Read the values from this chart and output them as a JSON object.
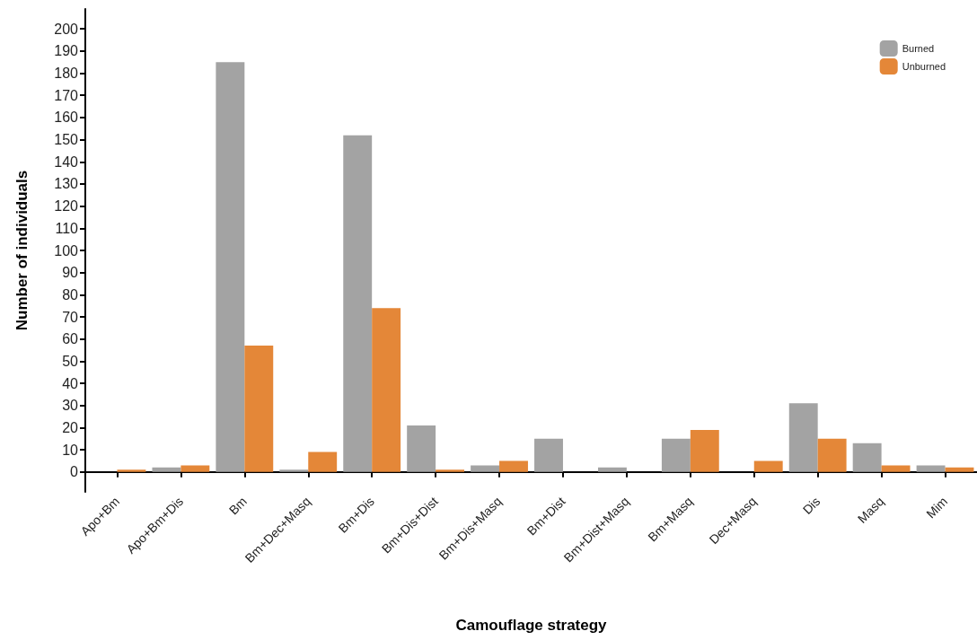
{
  "chart_data": {
    "type": "bar",
    "xlabel": "Camouflage strategy",
    "ylabel": "Number of individuals",
    "categories": [
      "Apo+Bm",
      "Apo+Bm+Dis",
      "Bm",
      "Bm+Dec+Masq",
      "Bm+Dis",
      "Bm+Dis+Dist",
      "Bm+Dis+Masq",
      "Bm+Dist",
      "Bm+Dist+Masq",
      "Bm+Masq",
      "Dec+Masq",
      "Dis",
      "Masq",
      "Mim"
    ],
    "series": [
      {
        "name": "Burned",
        "color": "#a3a3a3",
        "values": [
          0,
          2,
          185,
          1,
          152,
          21,
          3,
          15,
          2,
          15,
          0,
          31,
          13,
          3
        ]
      },
      {
        "name": "Unburned",
        "color": "#e48738",
        "values": [
          1,
          3,
          57,
          9,
          74,
          1,
          5,
          0,
          0,
          19,
          5,
          15,
          3,
          2
        ]
      }
    ],
    "ylim": [
      -9,
      209
    ],
    "yticks": [
      0,
      10,
      20,
      30,
      40,
      50,
      60,
      70,
      80,
      90,
      100,
      110,
      120,
      130,
      140,
      150,
      160,
      170,
      180,
      190,
      200
    ],
    "grid": false,
    "legend": "top right"
  }
}
